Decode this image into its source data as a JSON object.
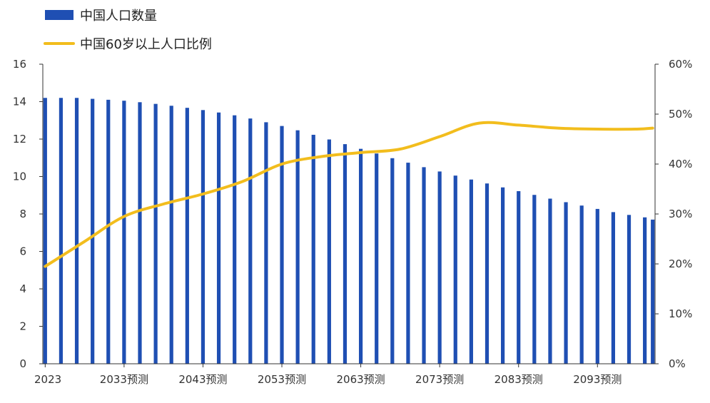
{
  "chart_data": {
    "type": "bar",
    "legend": [
      {
        "name": "中国人口数量",
        "color": "#1f4fb3",
        "marker": "bar"
      },
      {
        "name": "中国60岁以上人口比例",
        "color": "#f2bd1d",
        "marker": "line"
      }
    ],
    "legend_position": "top-left",
    "x_tick_labels": [
      "2023",
      "2033预测",
      "2043预测",
      "2053预测",
      "2063预测",
      "2073预测",
      "2083预测",
      "2093预测"
    ],
    "x_tick_years": [
      2023,
      2033,
      2043,
      2053,
      2063,
      2073,
      2083,
      2093
    ],
    "y_left": {
      "min": 0,
      "max": 16,
      "ticks": [
        "0",
        "2",
        "4",
        "6",
        "8",
        "10",
        "12",
        "14",
        "16"
      ]
    },
    "y_right": {
      "min": 0,
      "max": 60,
      "ticks": [
        "0%",
        "10%",
        "20%",
        "30%",
        "40%",
        "50%",
        "60%"
      ]
    },
    "grid": false,
    "series": [
      {
        "name": "中国人口数量",
        "kind": "bar",
        "axis": "left",
        "color": "#1f4fb3",
        "x": [
          2023,
          2025,
          2027,
          2029,
          2031,
          2033,
          2035,
          2037,
          2039,
          2041,
          2043,
          2045,
          2047,
          2049,
          2051,
          2053,
          2055,
          2057,
          2059,
          2061,
          2063,
          2065,
          2067,
          2069,
          2071,
          2073,
          2075,
          2077,
          2079,
          2081,
          2083,
          2085,
          2087,
          2089,
          2091,
          2093,
          2095,
          2097,
          2099,
          2100
        ],
        "values": [
          14.2,
          14.2,
          14.2,
          14.15,
          14.1,
          14.05,
          13.97,
          13.88,
          13.78,
          13.67,
          13.55,
          13.42,
          13.27,
          13.1,
          12.9,
          12.7,
          12.47,
          12.23,
          11.98,
          11.73,
          11.48,
          11.23,
          10.98,
          10.74,
          10.5,
          10.27,
          10.05,
          9.84,
          9.63,
          9.42,
          9.22,
          9.02,
          8.82,
          8.63,
          8.45,
          8.27,
          8.1,
          7.95,
          7.82,
          7.7
        ]
      },
      {
        "name": "中国60岁以上人口比例",
        "kind": "line",
        "axis": "right",
        "color": "#f2bd1d",
        "x": [
          2023,
          2028,
          2033,
          2038,
          2043,
          2048,
          2053,
          2058,
          2063,
          2068,
          2073,
          2078,
          2083,
          2088,
          2093,
          2098,
          2100
        ],
        "values": [
          19.5,
          24.5,
          29.5,
          32.0,
          34.0,
          36.5,
          40.0,
          41.5,
          42.3,
          43.0,
          45.5,
          48.2,
          47.8,
          47.2,
          47.0,
          47.0,
          47.2
        ]
      }
    ]
  }
}
